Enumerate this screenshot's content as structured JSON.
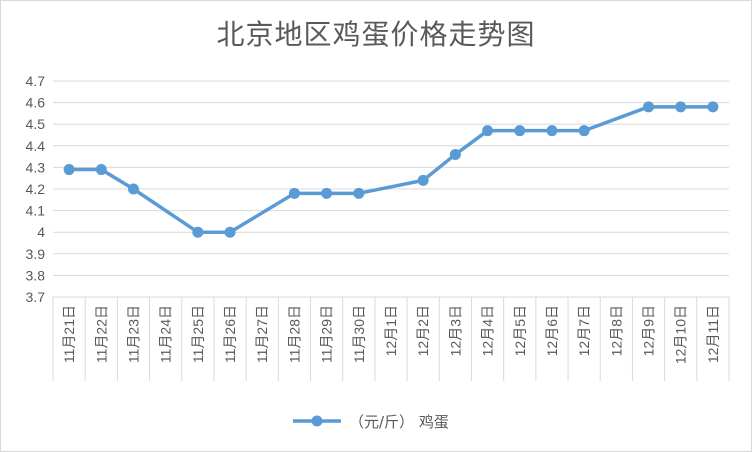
{
  "chart_data": {
    "type": "line",
    "title": "北京地区鸡蛋价格走势图",
    "categories": [
      "11月21日",
      "11月22日",
      "11月23日",
      "11月24日",
      "11月25日",
      "11月26日",
      "11月27日",
      "11月28日",
      "11月29日",
      "11月30日",
      "12月1日",
      "12月2日",
      "12月3日",
      "12月4日",
      "12月5日",
      "12月6日",
      "12月7日",
      "12月8日",
      "12月9日",
      "12月10日",
      "12月11日"
    ],
    "series": [
      {
        "name": "（元/斤） 鸡蛋",
        "values": [
          4.29,
          4.29,
          4.2,
          null,
          4.0,
          4.0,
          null,
          4.18,
          4.18,
          4.18,
          null,
          4.24,
          4.36,
          4.47,
          4.47,
          4.47,
          4.47,
          null,
          4.58,
          4.58,
          4.58
        ]
      }
    ],
    "ylim": [
      3.7,
      4.7
    ],
    "yticks": [
      "3.7",
      "3.8",
      "3.9",
      "4",
      "4.1",
      "4.2",
      "4.3",
      "4.4",
      "4.5",
      "4.6",
      "4.7"
    ],
    "grid": true,
    "legend_position": "bottom",
    "colors": {
      "series": "#5b9bd5",
      "grid": "#d9d9d9",
      "text": "#595959"
    }
  }
}
